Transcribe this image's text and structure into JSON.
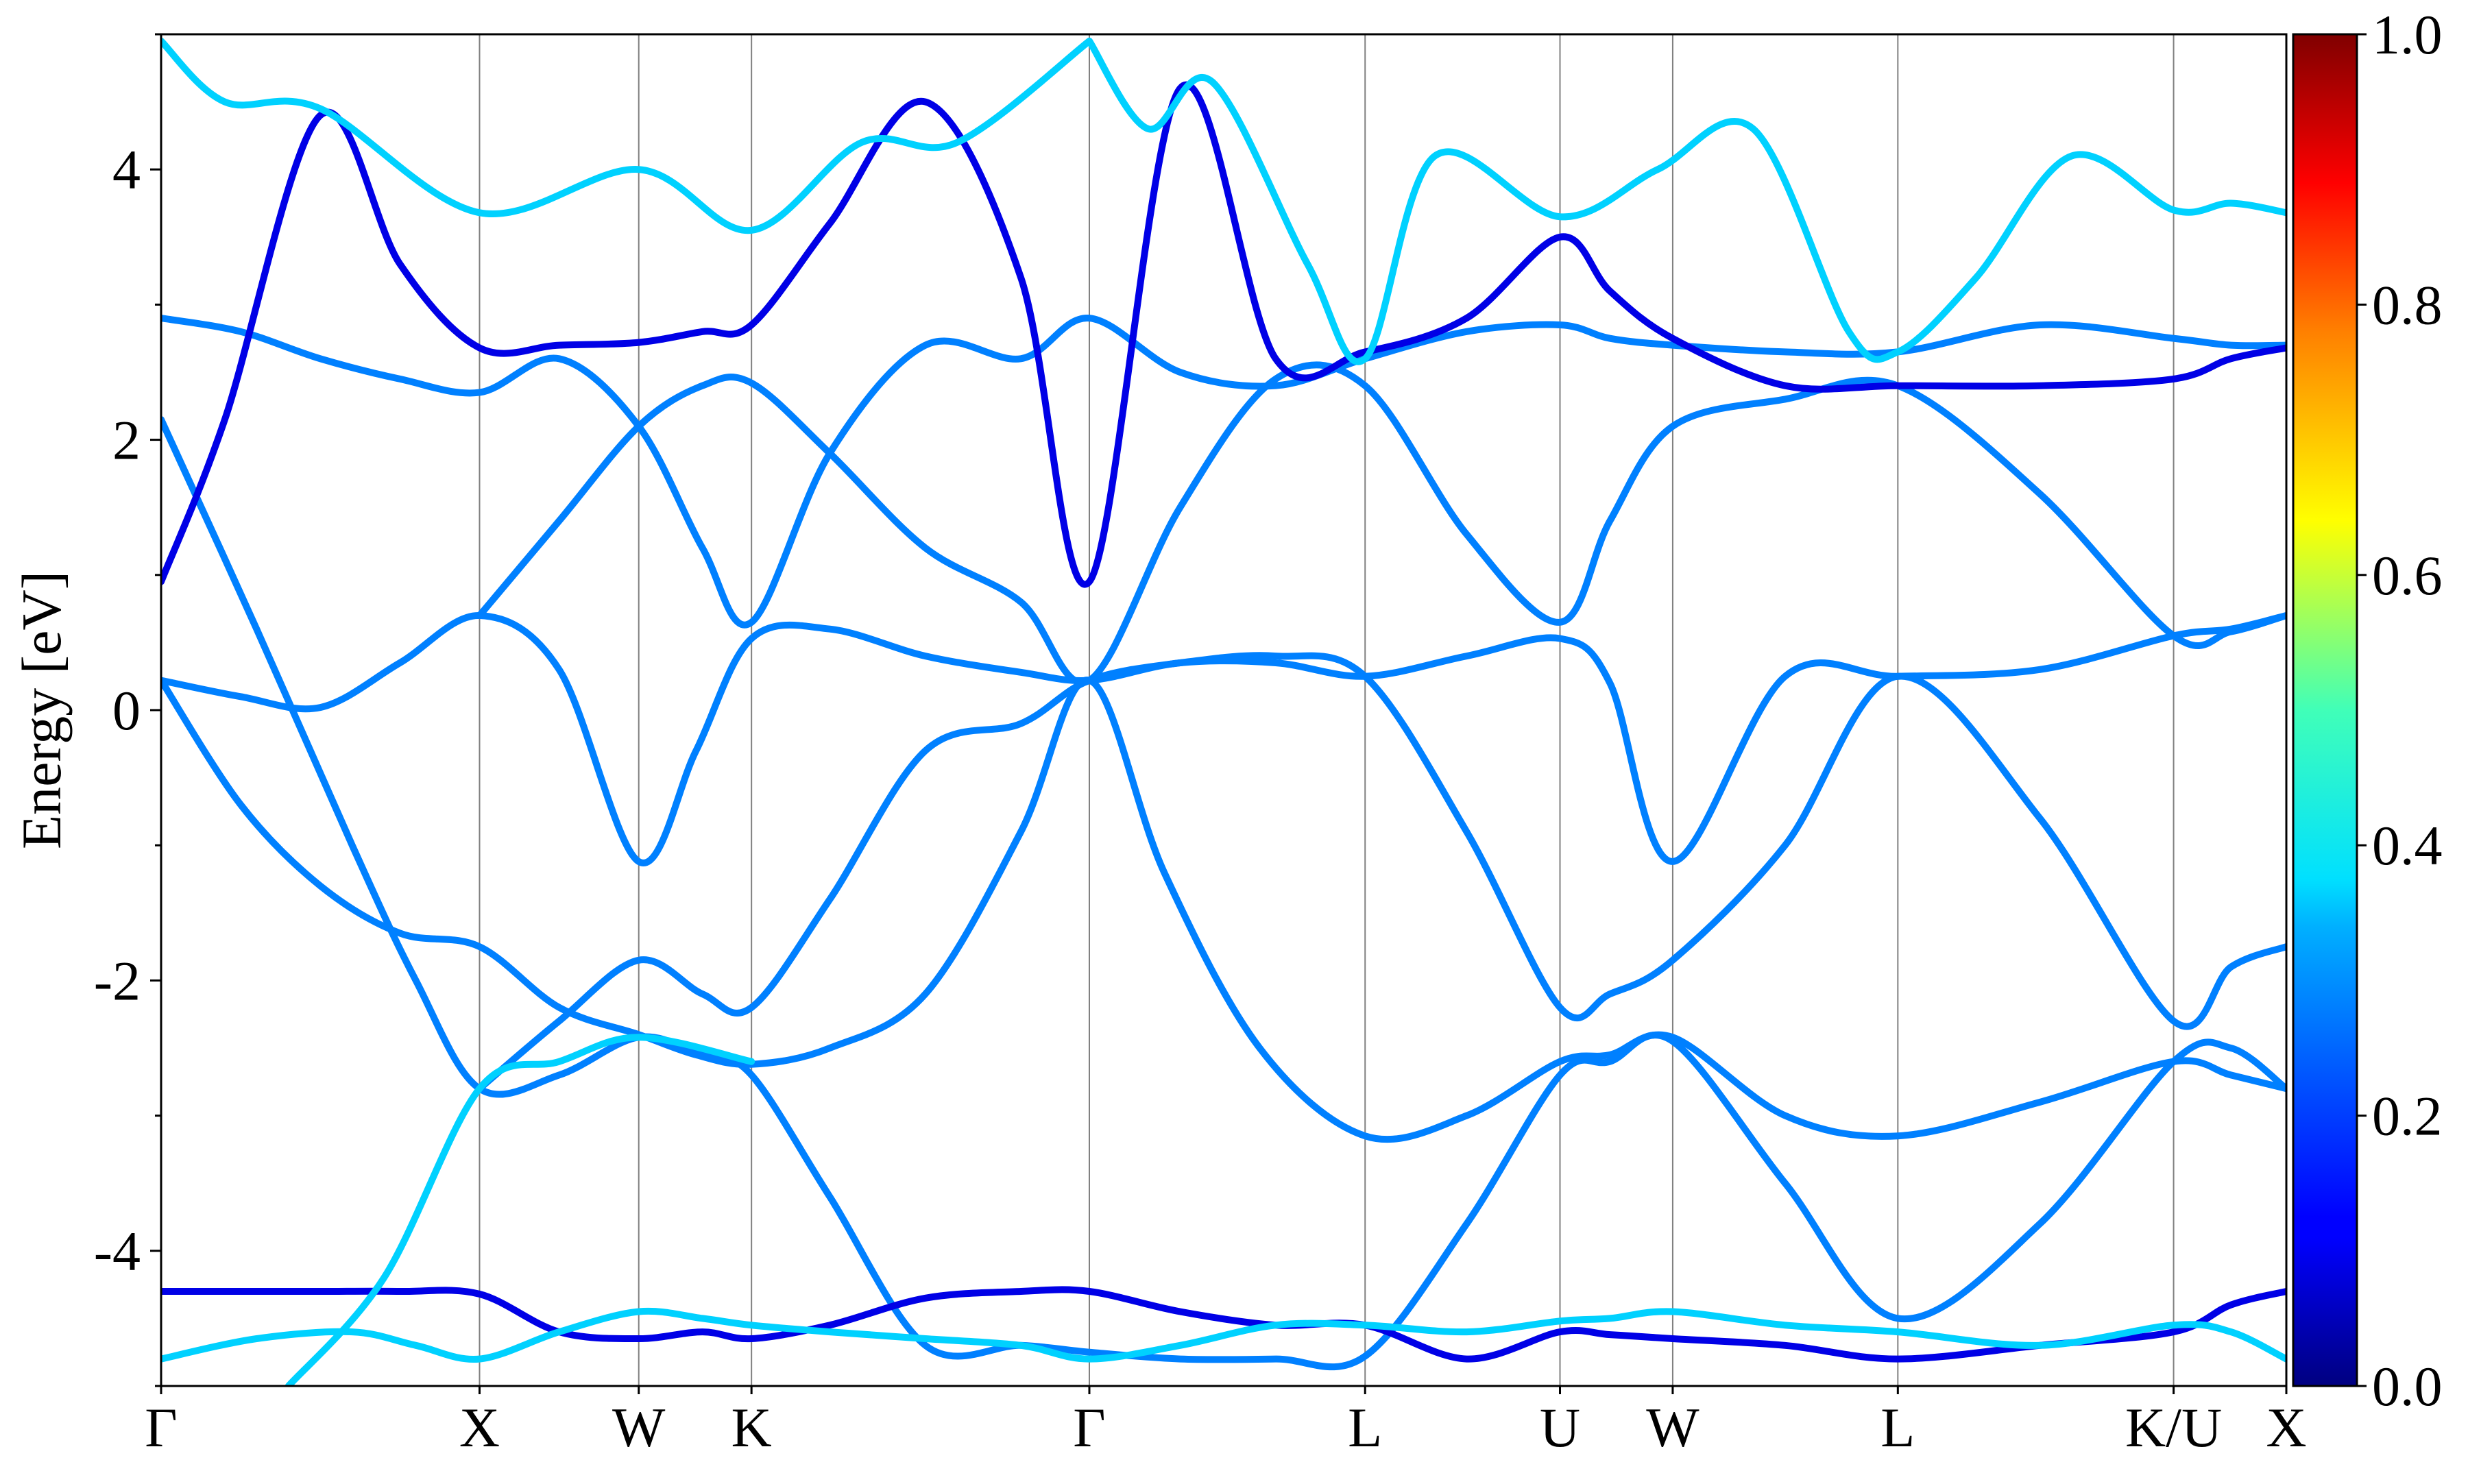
{
  "chart_data": {
    "type": "line",
    "title": "",
    "ylabel": "Energy [eV]",
    "xlabel": "",
    "ylim": [
      -5,
      5
    ],
    "y_ticks": [
      -4,
      -2,
      0,
      2,
      4
    ],
    "x_ticks": [
      {
        "label": "Γ",
        "x": 0
      },
      {
        "label": "X",
        "x": 1
      },
      {
        "label": "W",
        "x": 1.5
      },
      {
        "label": "K",
        "x": 1.854
      },
      {
        "label": "Γ",
        "x": 2.915
      },
      {
        "label": "L",
        "x": 3.781
      },
      {
        "label": "U",
        "x": 4.393
      },
      {
        "label": "W",
        "x": 4.747
      },
      {
        "label": "L",
        "x": 5.454
      },
      {
        "label": "K/U",
        "x": 6.32
      },
      {
        "label": "X",
        "x": 6.674
      }
    ],
    "xlim": [
      0,
      6.674
    ],
    "grid": "vertical lines at high-symmetry points",
    "colorbar": {
      "range": [
        0,
        1
      ],
      "ticks": [
        "0.0",
        "0.2",
        "0.4",
        "0.6",
        "0.8",
        "1.0"
      ],
      "colormap": "jet"
    },
    "series": [
      {
        "c": 0.25,
        "x": [
          0,
          0.25,
          0.5,
          0.75,
          1,
          1.25,
          1.5,
          1.68,
          1.854,
          2.1,
          2.4,
          2.7,
          2.915,
          3.2,
          3.5,
          3.781,
          4.1,
          4.393,
          4.55,
          4.747,
          5.1,
          5.454,
          5.9,
          6.32,
          6.5,
          6.674
        ],
        "y": [
          0.22,
          0.1,
          0.02,
          0.35,
          0.7,
          0.3,
          -1.12,
          -0.3,
          0.53,
          0.6,
          0.4,
          0.28,
          0.22,
          0.35,
          0.35,
          0.25,
          0.4,
          0.53,
          0.2,
          -1.12,
          0.25,
          0.25,
          0.3,
          0.55,
          0.6,
          0.7
        ]
      },
      {
        "c": 0.25,
        "x": [
          0,
          0.25,
          0.5,
          0.75,
          1,
          1.25,
          1.5,
          1.68,
          1.854,
          2.1,
          2.4,
          2.7,
          2.915,
          3.15,
          3.45,
          3.781,
          4.1,
          4.393,
          4.55,
          4.747,
          5.1,
          5.454,
          5.9,
          6.32,
          6.5,
          6.674
        ],
        "y": [
          0.22,
          -0.7,
          -1.3,
          -1.65,
          -1.75,
          -2.2,
          -2.4,
          -2.55,
          -2.62,
          -2.5,
          -2.1,
          -0.9,
          0.22,
          -1.2,
          -2.5,
          -3.15,
          -3.0,
          -2.6,
          -2.55,
          -2.42,
          -3.0,
          -3.15,
          -2.9,
          -2.6,
          -2.7,
          -2.8
        ]
      },
      {
        "c": 0.25,
        "x": [
          0,
          0.3,
          0.6,
          0.8,
          1,
          1.25,
          1.5,
          1.7,
          1.854,
          2.1,
          2.4,
          2.7,
          2.915,
          3.2,
          3.5,
          3.781,
          4.1,
          4.393,
          4.55,
          4.747,
          5.1,
          5.454,
          5.9,
          6.32,
          6.5,
          6.674
        ],
        "y": [
          2.15,
          0.6,
          -1.0,
          -2.0,
          -2.8,
          -2.7,
          -2.42,
          -2.55,
          -2.7,
          -3.6,
          -4.7,
          -4.7,
          -4.75,
          -4.8,
          -4.8,
          -4.78,
          -3.8,
          -2.7,
          -2.6,
          -2.45,
          -3.5,
          -4.5,
          -3.8,
          -2.6,
          -2.5,
          -2.8
        ]
      },
      {
        "c": 0.25,
        "x": [
          1,
          1.25,
          1.5,
          1.7,
          1.854,
          2.1,
          2.4,
          2.7,
          2.915,
          3.2,
          3.5,
          3.781,
          4.1,
          4.393,
          4.55,
          4.747,
          5.1,
          5.454,
          5.9,
          6.32,
          6.5,
          6.674
        ],
        "y": [
          -2.8,
          -2.3,
          -1.85,
          -2.1,
          -2.2,
          -1.4,
          -0.3,
          -0.1,
          0.22,
          0.35,
          0.4,
          0.25,
          -0.9,
          -2.2,
          -2.1,
          -1.85,
          -1.0,
          0.25,
          -0.8,
          -2.3,
          -1.9,
          -1.75
        ]
      },
      {
        "c": 0.25,
        "x": [
          1,
          1.25,
          1.5,
          1.7,
          1.854,
          2.1,
          2.4,
          2.7,
          2.915,
          3.2,
          3.5,
          3.781,
          4.1,
          4.393,
          4.55,
          4.747,
          5.1,
          5.454,
          5.9,
          6.32,
          6.5,
          6.674
        ],
        "y": [
          0.7,
          1.4,
          2.1,
          2.4,
          2.42,
          1.9,
          1.2,
          0.8,
          0.22,
          1.5,
          2.45,
          2.4,
          1.3,
          0.65,
          1.4,
          2.1,
          2.3,
          2.4,
          1.6,
          0.55,
          0.58,
          0.7
        ]
      },
      {
        "c": 0.25,
        "x": [
          0,
          0.25,
          0.5,
          0.75,
          1,
          1.25,
          1.5,
          1.7,
          1.854,
          2.1,
          2.4,
          2.7,
          2.915,
          3.2,
          3.5,
          3.781,
          4.1,
          4.393,
          4.55,
          4.747,
          5.1,
          5.454,
          5.9,
          6.32,
          6.5,
          6.674
        ],
        "y": [
          2.9,
          2.8,
          2.6,
          2.45,
          2.35,
          2.6,
          2.1,
          1.2,
          0.65,
          1.9,
          2.7,
          2.6,
          2.9,
          2.5,
          2.4,
          2.6,
          2.8,
          2.85,
          2.75,
          2.7,
          2.65,
          2.65,
          2.85,
          2.75,
          2.7,
          2.7
        ]
      },
      {
        "c": 0.1,
        "x": [
          0,
          0.2,
          0.5,
          0.75,
          1,
          1.25,
          1.5,
          1.7,
          1.854,
          2.1,
          2.4,
          2.7,
          2.915,
          3.2,
          3.5,
          3.781,
          4.1,
          4.393,
          4.55,
          4.747,
          5.1,
          5.454,
          5.9,
          6.32,
          6.5,
          6.674
        ],
        "y": [
          0.95,
          2.15,
          4.4,
          3.3,
          2.68,
          2.7,
          2.72,
          2.8,
          2.85,
          3.6,
          4.5,
          3.2,
          0.95,
          4.6,
          2.6,
          2.65,
          2.9,
          3.5,
          3.1,
          2.75,
          2.4,
          2.4,
          2.4,
          2.45,
          2.6,
          2.68
        ]
      },
      {
        "c": 0.1,
        "x": [
          0,
          0.25,
          0.5,
          0.75,
          1,
          1.25,
          1.5,
          1.7,
          1.854,
          2.1,
          2.4,
          2.7,
          2.915,
          3.2,
          3.5,
          3.781,
          4.1,
          4.393,
          4.55,
          4.747,
          5.1,
          5.454,
          5.9,
          6.32,
          6.5,
          6.674
        ],
        "y": [
          -4.3,
          -4.3,
          -4.3,
          -4.3,
          -4.32,
          -4.6,
          -4.65,
          -4.6,
          -4.65,
          -4.55,
          -4.35,
          -4.3,
          -4.3,
          -4.45,
          -4.55,
          -4.55,
          -4.8,
          -4.6,
          -4.62,
          -4.65,
          -4.7,
          -4.8,
          -4.7,
          -4.6,
          -4.4,
          -4.3
        ]
      },
      {
        "c": 0.33,
        "x": [
          0,
          0.3,
          0.6,
          0.8,
          1,
          1.25,
          1.5,
          1.7,
          1.854,
          2.1,
          2.4,
          2.7,
          2.915,
          3.2,
          3.5,
          3.781,
          4.1,
          4.393,
          4.55,
          4.747,
          5.1,
          5.454,
          5.9,
          6.32,
          6.5,
          6.674
        ],
        "y": [
          -4.8,
          -4.65,
          -4.6,
          -4.7,
          -4.8,
          -4.6,
          -4.45,
          -4.5,
          -4.55,
          -4.6,
          -4.65,
          -4.7,
          -4.8,
          -4.7,
          -4.55,
          -4.55,
          -4.6,
          -4.52,
          -4.5,
          -4.45,
          -4.55,
          -4.6,
          -4.7,
          -4.55,
          -4.6,
          -4.8
        ]
      },
      {
        "c": 0.33,
        "x": [
          0.4,
          0.7,
          1,
          1.25,
          1.5,
          1.854
        ],
        "y": [
          -5.0,
          -4.2,
          -2.8,
          -2.6,
          -2.42,
          -2.6
        ]
      },
      {
        "c": 0.33,
        "x": [
          0,
          0.2,
          0.5,
          1,
          1.5,
          1.854,
          2.2,
          2.5,
          2.915
        ],
        "y": [
          4.95,
          4.5,
          4.45,
          3.68,
          4.0,
          3.55,
          4.2,
          4.2,
          4.95
        ]
      },
      {
        "c": 0.33,
        "x": [
          2.915,
          3.1,
          3.3,
          3.6,
          3.781,
          4.0,
          4.393,
          4.7,
          5.0,
          5.3,
          5.454,
          5.7,
          6.0,
          6.32,
          6.5,
          6.674
        ],
        "y": [
          4.95,
          4.3,
          4.65,
          3.3,
          2.6,
          4.1,
          3.65,
          4.0,
          4.3,
          2.8,
          2.65,
          3.2,
          4.1,
          3.7,
          3.75,
          3.68
        ]
      }
    ]
  }
}
